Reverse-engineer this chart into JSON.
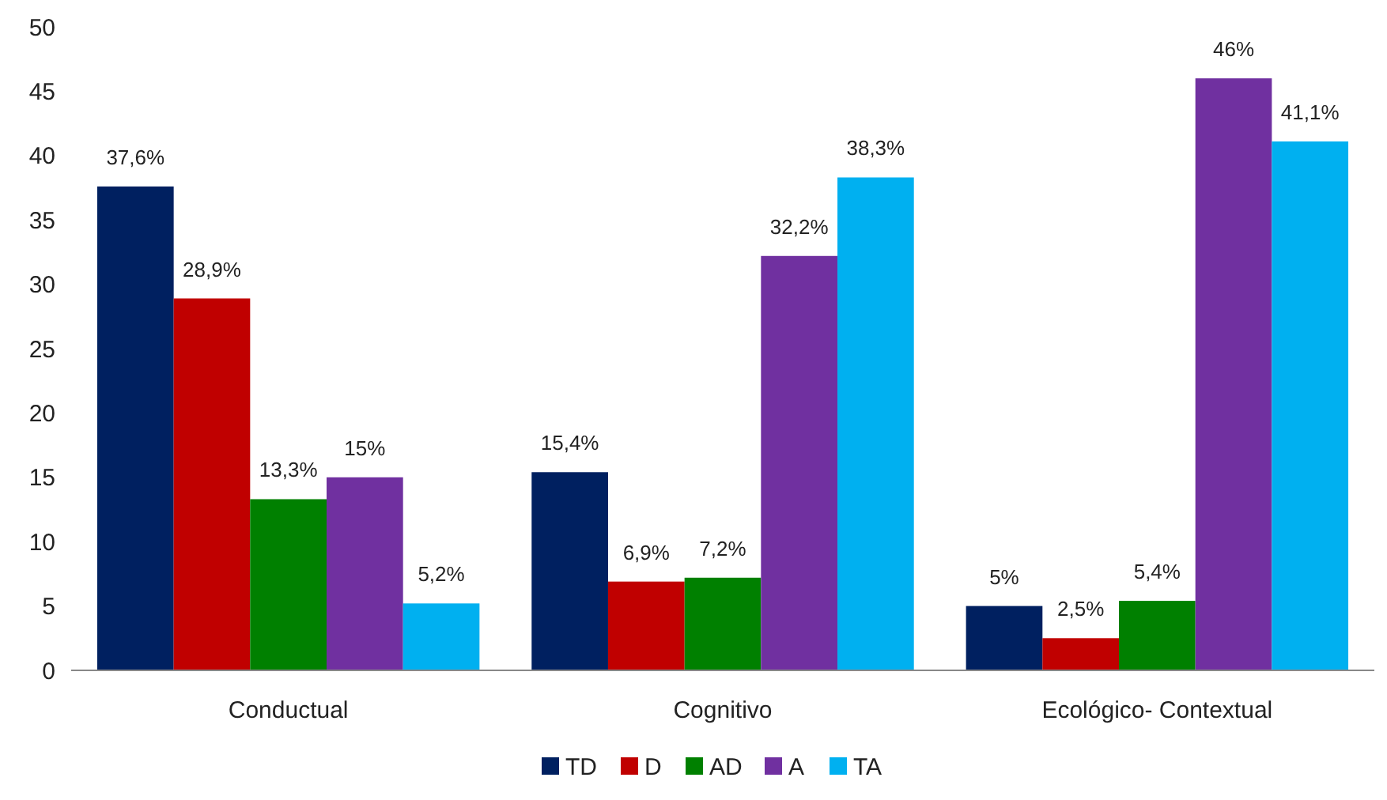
{
  "chart_data": {
    "type": "bar",
    "categories": [
      "Conductual",
      "Cognitivo",
      "Ecológico- Contextual"
    ],
    "series": [
      {
        "name": "TD",
        "color": "#002060",
        "values": [
          37.6,
          15.4,
          5
        ],
        "value_labels": [
          "37,6%",
          "15,4%",
          "5%"
        ]
      },
      {
        "name": "D",
        "color": "#c00000",
        "values": [
          28.9,
          6.9,
          2.5
        ],
        "value_labels": [
          "28,9%",
          "6,9%",
          "2,5%"
        ]
      },
      {
        "name": "AD",
        "color": "#008000",
        "values": [
          13.3,
          7.2,
          5.4
        ],
        "value_labels": [
          "13,3%",
          "7,2%",
          "5,4%"
        ]
      },
      {
        "name": "A",
        "color": "#7030a0",
        "values": [
          15,
          32.2,
          46
        ],
        "value_labels": [
          "15%",
          "32,2%",
          "46%"
        ]
      },
      {
        "name": "TA",
        "color": "#00b0f0",
        "values": [
          5.2,
          38.3,
          41.1
        ],
        "value_labels": [
          "5,2%",
          "38,3%",
          "41,1%"
        ]
      }
    ],
    "ylim": [
      0,
      50
    ],
    "yticks": [
      0,
      5,
      10,
      15,
      20,
      25,
      30,
      35,
      40,
      45,
      50
    ],
    "grid": false,
    "legend": "bottom"
  }
}
